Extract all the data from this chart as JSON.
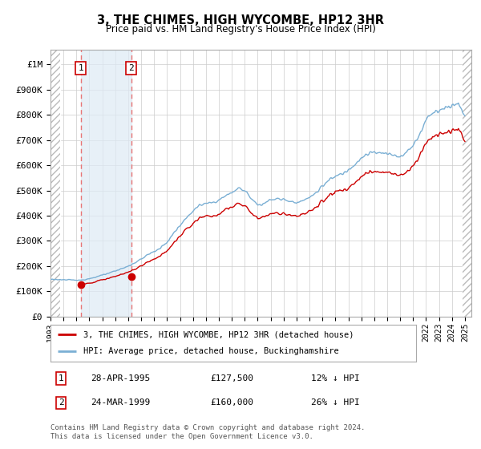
{
  "title": "3, THE CHIMES, HIGH WYCOMBE, HP12 3HR",
  "subtitle": "Price paid vs. HM Land Registry's House Price Index (HPI)",
  "ylabel_ticks": [
    "£0",
    "£100K",
    "£200K",
    "£300K",
    "£400K",
    "£500K",
    "£600K",
    "£700K",
    "£800K",
    "£900K",
    "£1M"
  ],
  "ytick_vals": [
    0,
    100000,
    200000,
    300000,
    400000,
    500000,
    600000,
    700000,
    800000,
    900000,
    1000000
  ],
  "ylim": [
    0,
    1060000
  ],
  "xlim_years": [
    1993.0,
    2025.5
  ],
  "xtick_years": [
    1993,
    1994,
    1995,
    1996,
    1997,
    1998,
    1999,
    2000,
    2001,
    2002,
    2003,
    2004,
    2005,
    2006,
    2007,
    2008,
    2009,
    2010,
    2011,
    2012,
    2013,
    2014,
    2015,
    2016,
    2017,
    2018,
    2019,
    2020,
    2021,
    2022,
    2023,
    2024,
    2025
  ],
  "sale1_year": 1995.33,
  "sale1_price": 127500,
  "sale2_year": 1999.23,
  "sale2_price": 160000,
  "sale1_date": "28-APR-1995",
  "sale1_amount": "£127,500",
  "sale1_pct": "12% ↓ HPI",
  "sale2_date": "24-MAR-1999",
  "sale2_amount": "£160,000",
  "sale2_pct": "26% ↓ HPI",
  "line_color_red": "#cc0000",
  "line_color_blue": "#7aafd4",
  "marker_color_red": "#cc0000",
  "hpi_label": "HPI: Average price, detached house, Buckinghamshire",
  "price_label": "3, THE CHIMES, HIGH WYCOMBE, HP12 3HR (detached house)",
  "footnote": "Contains HM Land Registry data © Crown copyright and database right 2024.\nThis data is licensed under the Open Government Licence v3.0.",
  "bg_color": "#ffffff",
  "grid_color": "#cccccc",
  "hatch_color": "#bbbbbb"
}
